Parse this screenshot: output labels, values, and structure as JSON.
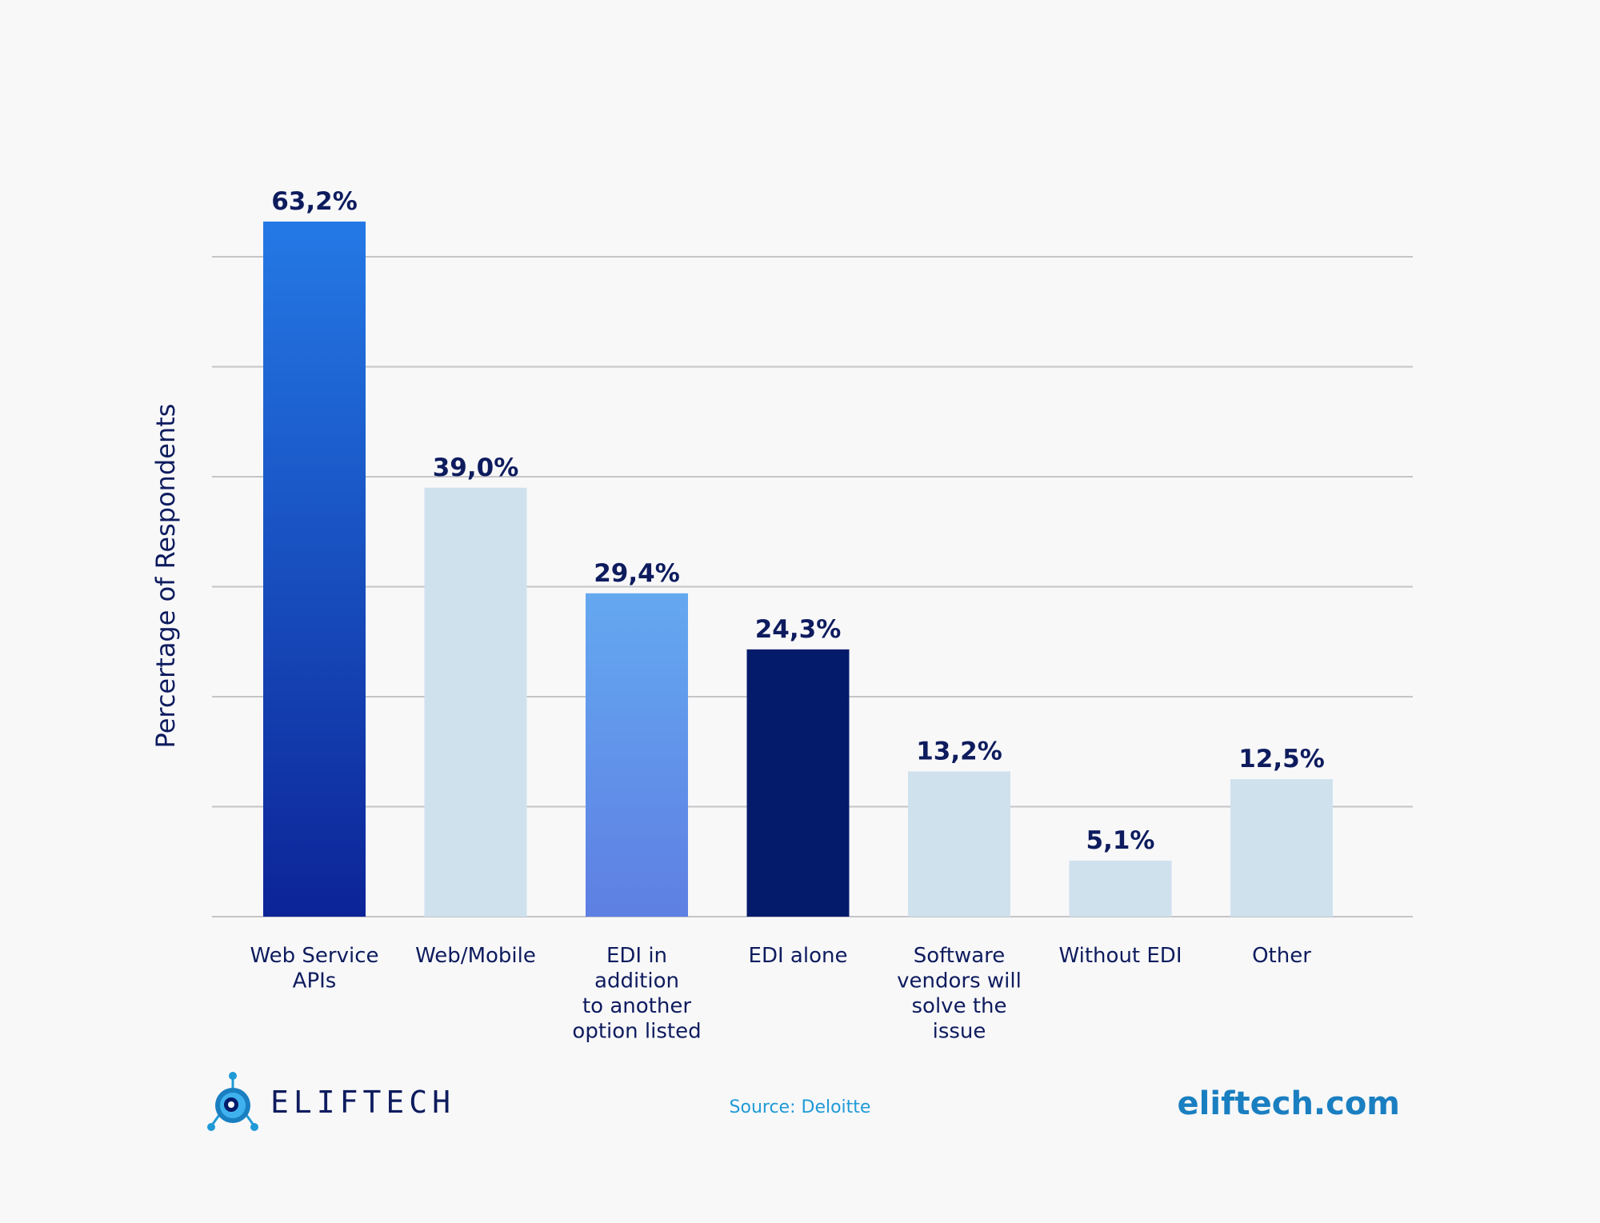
{
  "chart_data": {
    "type": "bar",
    "ylabel": "Percertage of Respondents",
    "xlabel": "",
    "ylim": [
      0,
      60
    ],
    "grid": true,
    "categories": [
      [
        "Web Service",
        "APIs"
      ],
      [
        "Web/Mobile"
      ],
      [
        "EDI in",
        "addition",
        "to another",
        "option listed"
      ],
      [
        "EDI alone"
      ],
      [
        "Software",
        "vendors will",
        "solve the",
        "issue"
      ],
      [
        "Without EDI"
      ],
      [
        "Other"
      ]
    ],
    "values": [
      63.2,
      39.0,
      29.4,
      24.3,
      13.2,
      5.1,
      12.5
    ],
    "value_labels": [
      "63,2%",
      "39,0%",
      "29,4%",
      "24,3%",
      "13,2%",
      "5,1%",
      "12,5%"
    ],
    "bar_styles": [
      "gradient-blue",
      "light",
      "gradient-sky",
      "navy",
      "light",
      "light",
      "light"
    ]
  },
  "colors": {
    "navy": "#041b6b",
    "light": "#d0e1ee",
    "grid": "#c5c5c8",
    "text": "#0e1c5e",
    "blue_top": "#2479e6",
    "blue_bottom": "#0c2497",
    "sky_top": "#64a8f0",
    "sky_bottom": "#5e7fe3"
  },
  "footer": {
    "logo_text": "ELIFTECH",
    "source": "Source: Deloitte",
    "site": "eliftech.com"
  }
}
